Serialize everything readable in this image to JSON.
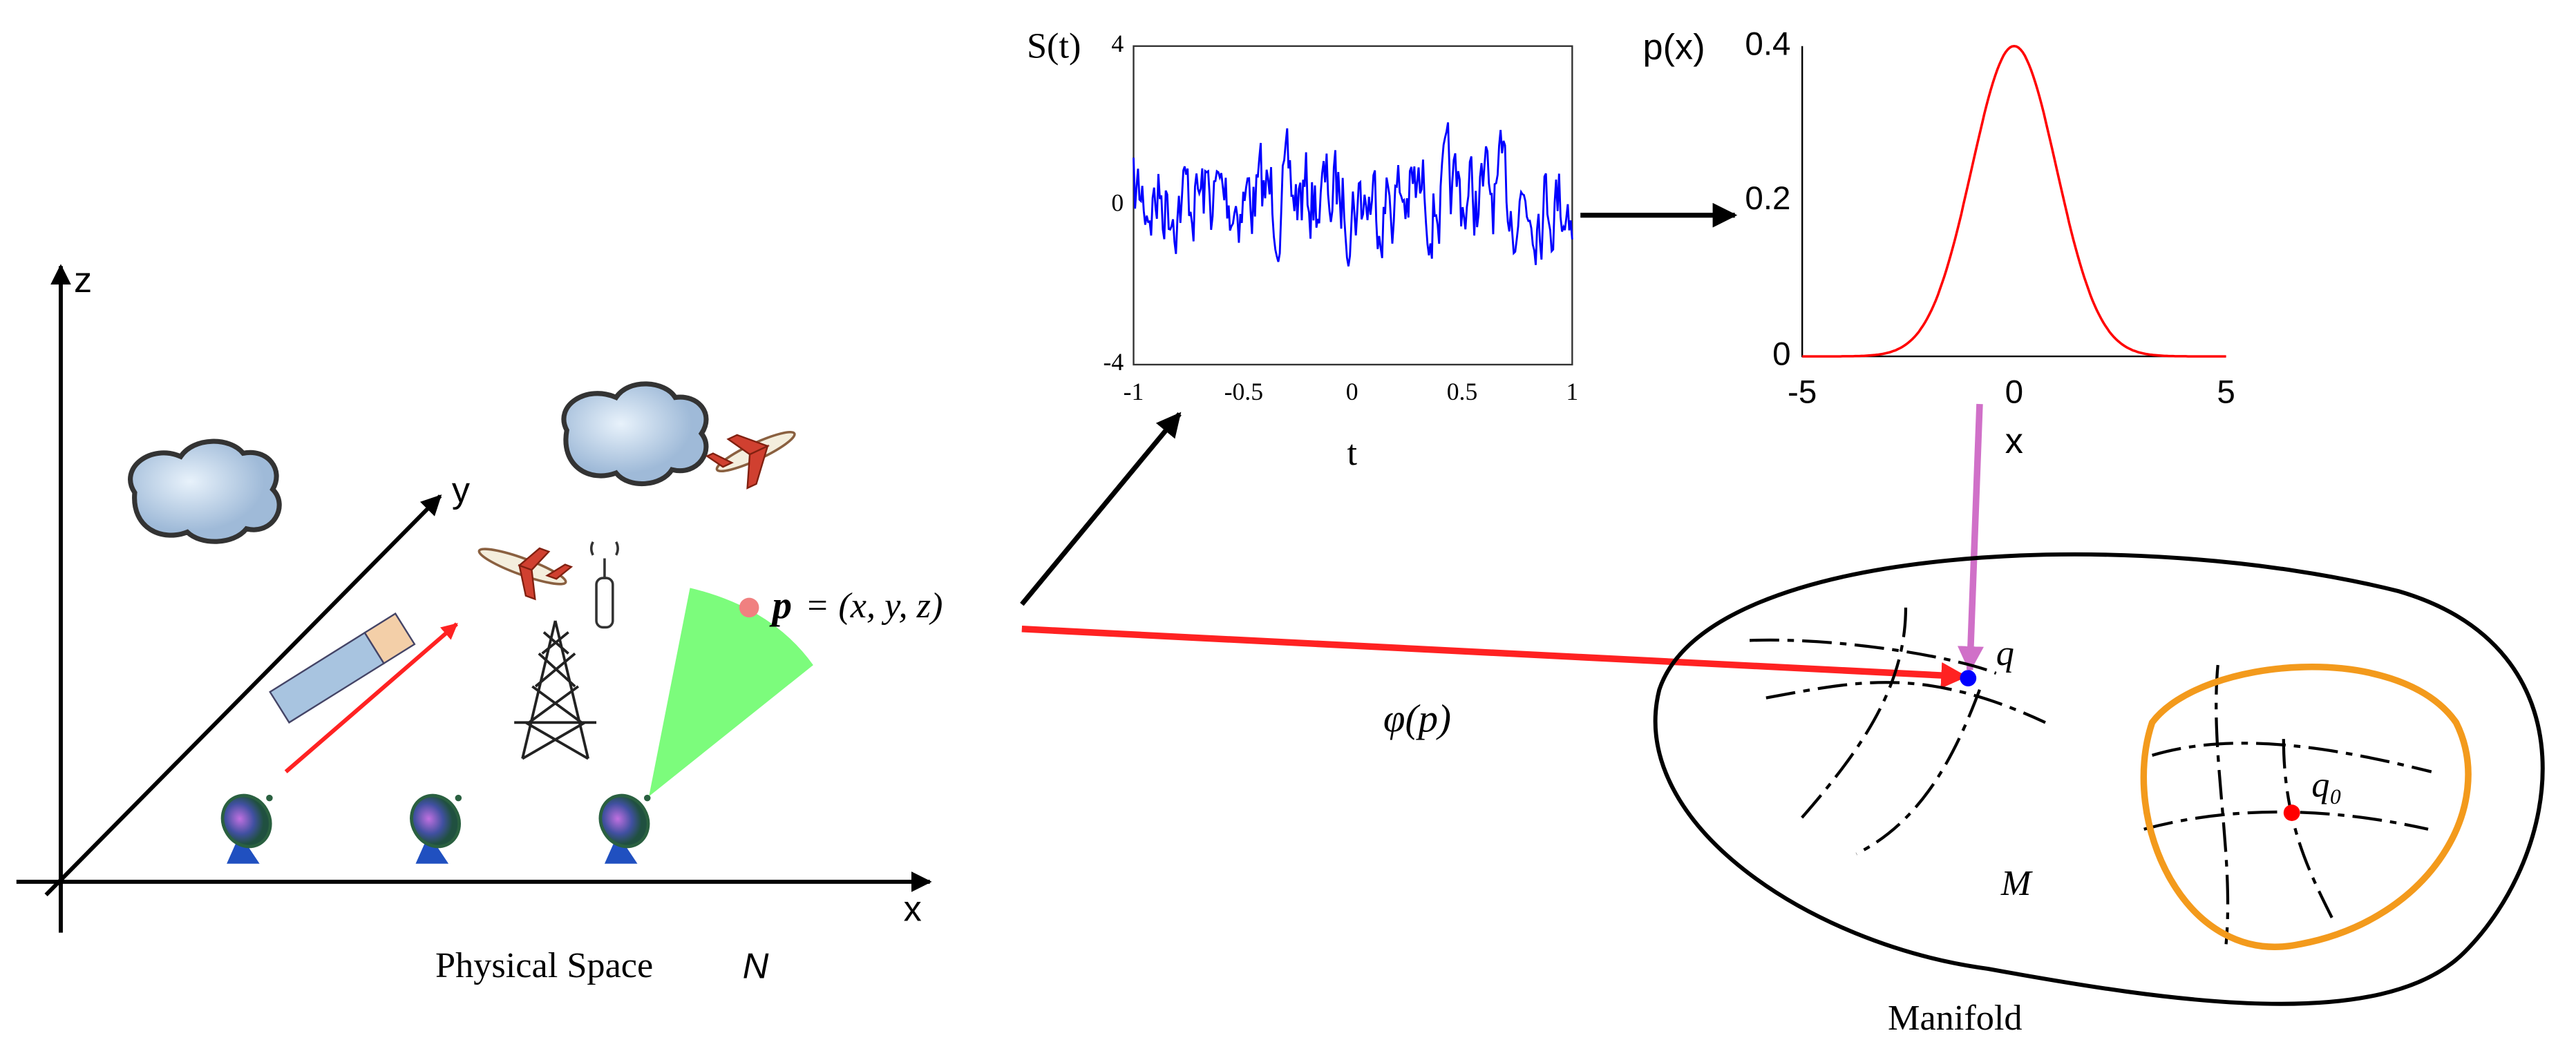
{
  "physical_space": {
    "axes": {
      "x": "x",
      "y": "y",
      "z": "z"
    },
    "caption": "Physical Space",
    "symbol": "N",
    "point_symbol": "p",
    "point_coords": "= (x, y, z)"
  },
  "signal_plot": {
    "ylabel": "S(t)",
    "xlabel": "t",
    "yticks": [
      "4",
      "0",
      "-4"
    ],
    "xticks": [
      "-1",
      "-0.5",
      "0",
      "0.5",
      "1"
    ]
  },
  "density_plot": {
    "ylabel": "p(x)",
    "xlabel": "x",
    "yticks": [
      "0.4",
      "0.2",
      "0"
    ],
    "xticks": [
      "-5",
      "0",
      "5"
    ]
  },
  "mapping_label": "φ(p)",
  "manifold": {
    "caption": "Manifold",
    "symbol": "M",
    "point": "q",
    "origin": "q₀"
  }
}
